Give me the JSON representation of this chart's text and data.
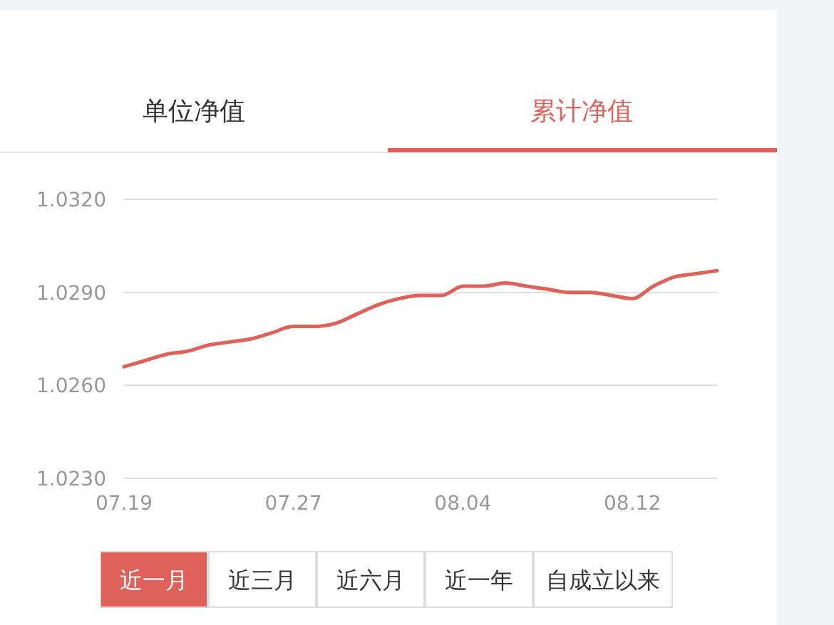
{
  "chart_data": {
    "type": "line",
    "x": [
      "--07-19",
      "--07-20",
      "--07-21",
      "--07-22",
      "--07-23",
      "--07-24",
      "--07-25",
      "--07-26",
      "--07-27",
      "--07-28",
      "--07-29",
      "--07-30",
      "--07-31",
      "--08-01",
      "--08-02",
      "--08-03",
      "--08-04",
      "--08-05",
      "--08-06",
      "--08-07",
      "--08-08",
      "--08-09",
      "--08-10",
      "--08-11",
      "--08-12",
      "--08-13",
      "--08-14",
      "--08-15",
      "--08-16"
    ],
    "series": [
      {
        "color": "#e0605a",
        "values": [
          1.0266,
          1.0268,
          1.027,
          1.0271,
          1.0273,
          1.0274,
          1.0275,
          1.0277,
          1.0279,
          1.0279,
          1.028,
          1.0283,
          1.0286,
          1.0288,
          1.0289,
          1.0289,
          1.0292,
          1.0292,
          1.0293,
          1.0292,
          1.0291,
          1.029,
          1.029,
          1.0289,
          1.0288,
          1.0292,
          1.0295,
          1.0296,
          1.0297
        ]
      }
    ],
    "xlim": [
      "--07-19",
      "--08-16"
    ],
    "xticks": [
      {
        "value": "--07-19",
        "label": "07.19"
      },
      {
        "value": "--07-27",
        "label": "07.27"
      },
      {
        "value": "--08-04",
        "label": "08.04"
      },
      {
        "value": "--08-12",
        "label": "08.12"
      }
    ],
    "ylim": [
      1.023,
      1.032
    ],
    "yticks": [
      {
        "value": 1.023,
        "label": "1.0230"
      },
      {
        "value": 1.026,
        "label": "1.0260"
      },
      {
        "value": 1.029,
        "label": "1.0290"
      },
      {
        "value": 1.032,
        "label": "1.0320"
      }
    ],
    "grid": "y",
    "marker": "none",
    "line_style": "solid",
    "annotations": [
      "单位净值",
      "累计净值",
      "近一月",
      "近三月",
      "近六月",
      "近一年",
      "自成立以来"
    ]
  }
}
